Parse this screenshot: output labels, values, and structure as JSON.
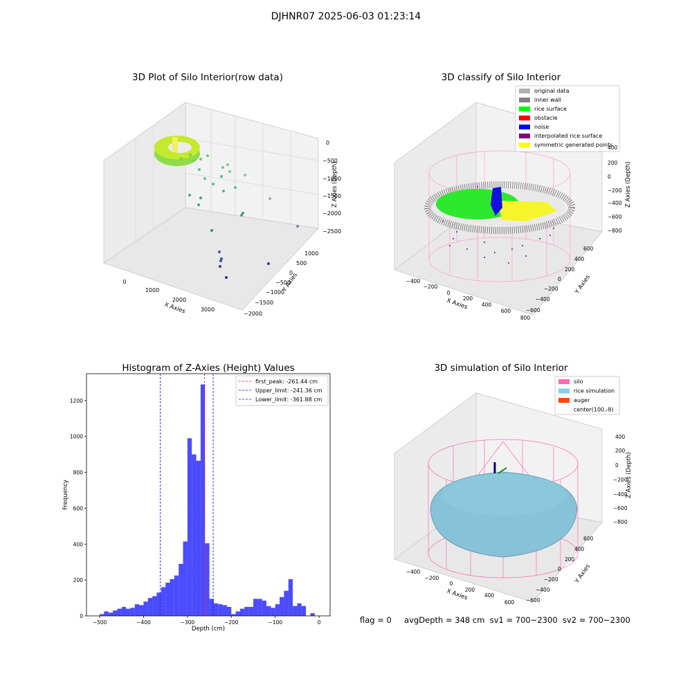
{
  "figure": {
    "title": "DJHNR07 2025-06-03 01:23:14"
  },
  "panels": {
    "raw": {
      "title": "3D Plot of Silo Interior(row data)",
      "xlabel": "X Axies",
      "ylabel": "Y Axies",
      "zlabel": "Z Axies (Depth)",
      "xticks": [
        "0",
        "1000",
        "2000",
        "3000"
      ],
      "yticks": [
        "1000",
        "500",
        "0",
        "−500",
        "−1000",
        "−1500",
        "−2000"
      ],
      "zticks": [
        "0",
        "−500",
        "−1000",
        "−1500",
        "−2000",
        "−2500"
      ]
    },
    "classify": {
      "title": "3D classify of Silo Interior",
      "xlabel": "X Axies",
      "ylabel": "Y Axies",
      "zlabel": "Z Axies (Depth)",
      "xticks": [
        "−400",
        "−200",
        "0",
        "200",
        "400",
        "600",
        "800"
      ],
      "yticks": [
        "600",
        "400",
        "200",
        "0",
        "−200",
        "−400",
        "−600"
      ],
      "zticks": [
        "400",
        "200",
        "0",
        "−200",
        "−400",
        "−600",
        "−800"
      ],
      "legend": [
        {
          "label": "original data",
          "color": "#b0b0b0"
        },
        {
          "label": "inner wall",
          "color": "#808080"
        },
        {
          "label": "rice surface",
          "color": "#00ff00"
        },
        {
          "label": "obstacle",
          "color": "#ff0000"
        },
        {
          "label": "noise",
          "color": "#0000ff"
        },
        {
          "label": "interpolated rice surface",
          "color": "#800080"
        },
        {
          "label": "symmetric generated points",
          "color": "#ffff00"
        }
      ]
    },
    "simulation": {
      "title": "3D simulation of Silo Interior",
      "xlabel": "X Axies",
      "ylabel": "Y Axies",
      "zlabel": "Z Axies (Depth)",
      "xticks": [
        "−400",
        "−200",
        "0",
        "200",
        "400",
        "600"
      ],
      "yticks": [
        "600",
        "400",
        "200",
        "0",
        "−200",
        "−400",
        "−600"
      ],
      "zticks": [
        "400",
        "200",
        "0",
        "−200",
        "−400",
        "−600",
        "−800"
      ],
      "legend": [
        {
          "label": "silo",
          "color": "#ff69b4"
        },
        {
          "label": "rice simulation",
          "color": "#87ceeb"
        },
        {
          "label": "auger",
          "color": "#ff4500"
        },
        {
          "label": "center(100,-8)",
          "color": ""
        }
      ]
    }
  },
  "status": {
    "flag": "flag = 0",
    "avg_depth": "avgDepth = 348 cm",
    "sv1": "sv1 = 700~2300",
    "sv2": "sv2 = 700~2300"
  },
  "chart_data": {
    "type": "bar",
    "title": "Histogram of Z-Axies (Height) Values",
    "xlabel": "Depth (cm)",
    "ylabel": "Frequency",
    "xlim": [
      -530,
      25
    ],
    "ylim": [
      0,
      1350
    ],
    "xticks": [
      -500,
      -400,
      -300,
      -200,
      -100,
      0
    ],
    "yticks": [
      0,
      200,
      400,
      600,
      800,
      1000,
      1200
    ],
    "bin_width": 10,
    "bin_starts": [
      -500,
      -490,
      -480,
      -470,
      -460,
      -450,
      -440,
      -430,
      -420,
      -410,
      -400,
      -390,
      -380,
      -370,
      -360,
      -350,
      -340,
      -330,
      -320,
      -310,
      -300,
      -290,
      -280,
      -270,
      -260,
      -250,
      -240,
      -230,
      -220,
      -210,
      -200,
      -190,
      -180,
      -170,
      -160,
      -150,
      -140,
      -130,
      -120,
      -110,
      -100,
      -90,
      -80,
      -70,
      -60,
      -50,
      -40,
      -30,
      -20,
      -10,
      0
    ],
    "counts": [
      10,
      25,
      18,
      30,
      40,
      50,
      40,
      45,
      65,
      60,
      80,
      100,
      110,
      130,
      160,
      185,
      205,
      225,
      290,
      415,
      990,
      900,
      865,
      1290,
      405,
      95,
      70,
      65,
      60,
      50,
      10,
      25,
      40,
      50,
      50,
      95,
      95,
      85,
      55,
      45,
      65,
      105,
      140,
      205,
      55,
      70,
      55,
      0,
      15,
      0,
      0
    ],
    "color": "#0000ff",
    "reference_lines": [
      {
        "name": "first_peak: -261.44 cm",
        "x": -261.44,
        "color": "#ff0000"
      },
      {
        "name": "Upper_limit: -241.36 cm",
        "x": -241.36,
        "color": "#0000ff"
      },
      {
        "name": "Lower_limit: -361.88 cm",
        "x": -361.88,
        "color": "#0000ff"
      }
    ],
    "legend_position": "top-right"
  }
}
